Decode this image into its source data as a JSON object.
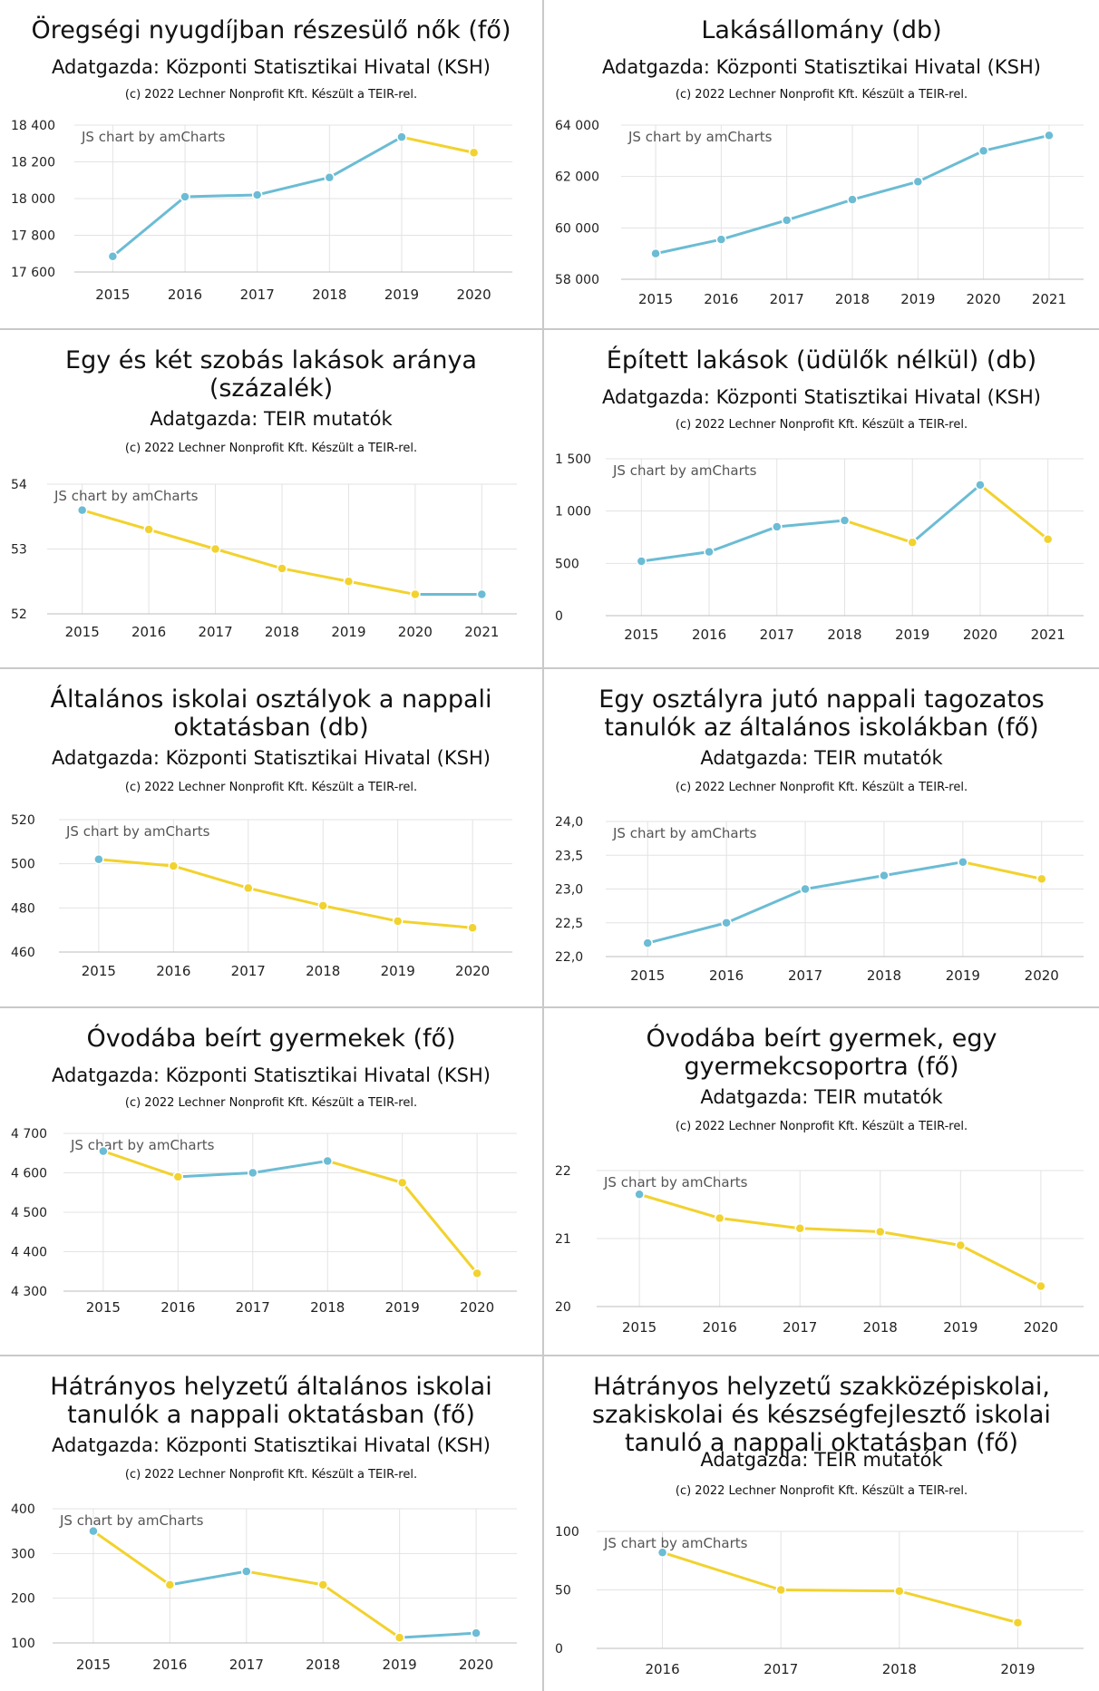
{
  "colors": {
    "up": "#6bbcd4",
    "down": "#f2d22e",
    "grid": "#e3e3e3",
    "axis": "#444444"
  },
  "watermark": "JS chart by amCharts",
  "chart_data": [
    {
      "type": "line",
      "title": "Öregségi nyugdíjban részesülő nők (fő)",
      "source": "Adatgazda: Központi Statisztikai Hivatal (KSH)",
      "credit": "(c) 2022 Lechner Nonprofit Kft. Készült a TEIR-rel.",
      "x": [
        "2015",
        "2016",
        "2017",
        "2018",
        "2019",
        "2020"
      ],
      "y": [
        17685,
        18010,
        18020,
        18115,
        18335,
        18250
      ],
      "ylim": [
        17600,
        18400
      ],
      "yticks": [
        "17 600",
        "17 800",
        "18 000",
        "18 200",
        "18 400"
      ],
      "grid": true
    },
    {
      "type": "line",
      "title": "Lakásállomány (db)",
      "source": "Adatgazda: Központi Statisztikai Hivatal (KSH)",
      "credit": "(c) 2022 Lechner Nonprofit Kft. Készült a TEIR-rel.",
      "x": [
        "2015",
        "2016",
        "2017",
        "2018",
        "2019",
        "2020",
        "2021"
      ],
      "y": [
        59000,
        59550,
        60300,
        61100,
        61800,
        63000,
        63600
      ],
      "ylim": [
        58000,
        64000
      ],
      "yticks": [
        "58 000",
        "60 000",
        "62 000",
        "64 000"
      ],
      "grid": true
    },
    {
      "type": "line",
      "title": "Egy és két szobás lakások aránya\n(százalék)",
      "source": "Adatgazda: TEIR mutatók",
      "credit": "(c) 2022 Lechner Nonprofit Kft. Készült a TEIR-rel.",
      "x": [
        "2015",
        "2016",
        "2017",
        "2018",
        "2019",
        "2020",
        "2021"
      ],
      "y": [
        53.6,
        53.3,
        53.0,
        52.7,
        52.5,
        52.3,
        52.3
      ],
      "ylim": [
        52,
        54
      ],
      "yticks": [
        "52",
        "53",
        "54"
      ],
      "grid": true
    },
    {
      "type": "line",
      "title": "Épített lakások (üdülők nélkül) (db)",
      "source": "Adatgazda: Központi Statisztikai Hivatal (KSH)",
      "credit": "(c) 2022 Lechner Nonprofit Kft. Készült a TEIR-rel.",
      "x": [
        "2015",
        "2016",
        "2017",
        "2018",
        "2019",
        "2020",
        "2021"
      ],
      "y": [
        520,
        610,
        850,
        910,
        700,
        1250,
        730
      ],
      "ylim": [
        0,
        1500
      ],
      "yticks": [
        "0",
        "500",
        "1 000",
        "1 500"
      ],
      "grid": true
    },
    {
      "type": "line",
      "title": "Általános iskolai osztályok a nappali\noktatásban (db)",
      "source": "Adatgazda: Központi Statisztikai Hivatal (KSH)",
      "credit": "(c) 2022 Lechner Nonprofit Kft. Készült a TEIR-rel.",
      "x": [
        "2015",
        "2016",
        "2017",
        "2018",
        "2019",
        "2020"
      ],
      "y": [
        502,
        499,
        489,
        481,
        474,
        471
      ],
      "ylim": [
        460,
        520
      ],
      "yticks": [
        "460",
        "480",
        "500",
        "520"
      ],
      "grid": true
    },
    {
      "type": "line",
      "title": "Egy osztályra jutó nappali tagozatos\ntanulók az általános iskolákban (fő)",
      "source": "Adatgazda: TEIR mutatók",
      "credit": "(c) 2022 Lechner Nonprofit Kft. Készült a TEIR-rel.",
      "x": [
        "2015",
        "2016",
        "2017",
        "2018",
        "2019",
        "2020"
      ],
      "y": [
        22.2,
        22.5,
        23.0,
        23.2,
        23.4,
        23.15
      ],
      "ylim": [
        22,
        24
      ],
      "yticks": [
        "22,0",
        "22,5",
        "23,0",
        "23,5",
        "24,0"
      ],
      "grid": true
    },
    {
      "type": "line",
      "title": "Óvodába beírt gyermekek (fő)",
      "source": "Adatgazda: Központi Statisztikai Hivatal (KSH)",
      "credit": "(c) 2022 Lechner Nonprofit Kft. Készült a TEIR-rel.",
      "x": [
        "2015",
        "2016",
        "2017",
        "2018",
        "2019",
        "2020"
      ],
      "y": [
        4655,
        4590,
        4600,
        4630,
        4575,
        4345
      ],
      "ylim": [
        4300,
        4700
      ],
      "yticks": [
        "4 300",
        "4 400",
        "4 500",
        "4 600",
        "4 700"
      ],
      "grid": true
    },
    {
      "type": "line",
      "title": "Óvodába beírt gyermek, egy\ngyermekcsoportra (fő)",
      "source": "Adatgazda: TEIR mutatók",
      "credit": "(c) 2022 Lechner Nonprofit Kft. Készült a TEIR-rel.",
      "x": [
        "2015",
        "2016",
        "2017",
        "2018",
        "2019",
        "2020"
      ],
      "y": [
        21.65,
        21.3,
        21.15,
        21.1,
        20.9,
        20.3
      ],
      "ylim": [
        20,
        22
      ],
      "yticks": [
        "20",
        "21",
        "22"
      ],
      "grid": true
    },
    {
      "type": "line",
      "title": "Hátrányos helyzetű általános iskolai\ntanulók a nappali oktatásban (fő)",
      "source": "Adatgazda: Központi Statisztikai Hivatal (KSH)",
      "credit": "(c) 2022 Lechner Nonprofit Kft. Készült a TEIR-rel.",
      "x": [
        "2015",
        "2016",
        "2017",
        "2018",
        "2019",
        "2020"
      ],
      "y": [
        350,
        230,
        260,
        230,
        112,
        122
      ],
      "ylim": [
        100,
        400
      ],
      "yticks": [
        "100",
        "200",
        "300",
        "400"
      ],
      "grid": true
    },
    {
      "type": "line",
      "title": "Hátrányos helyzetű szakközépiskolai,\nszakiskolai és készségfejlesztő iskolai\ntanuló a nappali oktatásban (fő)",
      "source": "Adatgazda: TEIR mutatók",
      "credit": "(c) 2022 Lechner Nonprofit Kft. Készült a TEIR-rel.",
      "x": [
        "2016",
        "2017",
        "2018",
        "2019"
      ],
      "y": [
        82,
        50,
        49,
        22
      ],
      "ylim": [
        0,
        100
      ],
      "yticks": [
        "0",
        "50",
        "100"
      ],
      "grid": true
    }
  ]
}
